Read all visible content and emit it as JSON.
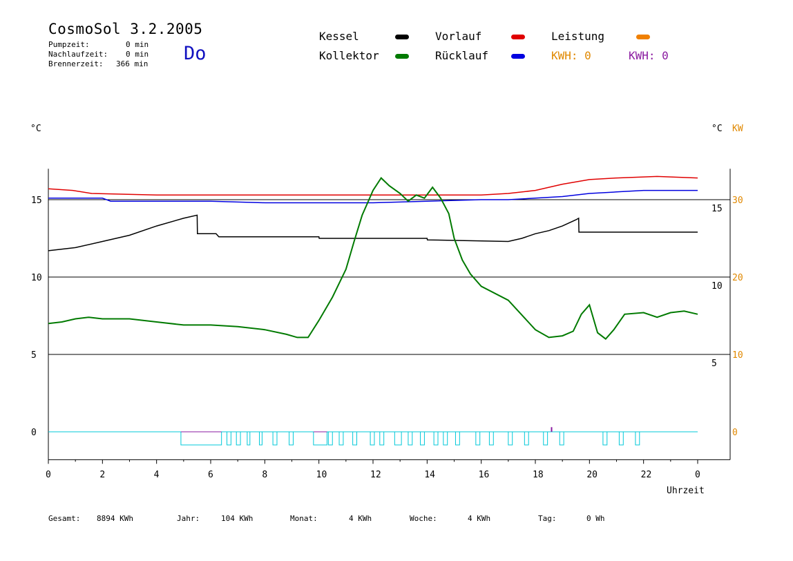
{
  "header": {
    "title": "CosmoSol 3.2.2005",
    "day": "Do",
    "pumpzeit_label": "Pumpzeit:",
    "pumpzeit_value": "0 min",
    "nachlaufzeit_label": "Nachlaufzeit:",
    "nachlaufzeit_value": "0 min",
    "brennerzeit_label": "Brennerzeit:",
    "brennerzeit_value": "366 min"
  },
  "legend": {
    "kessel": "Kessel",
    "kollektor": "Kollektor",
    "vorlauf": "Vorlauf",
    "ruecklauf": "Rücklauf",
    "leistung": "Leistung",
    "kwh1": "KWH: 0",
    "kwh2": "KWH: 0"
  },
  "colors": {
    "kessel": "#000000",
    "kollektor": "#007a00",
    "vorlauf": "#e00000",
    "ruecklauf": "#0000e0",
    "leistung": "#f08000",
    "kwh2": "#8a1aa0",
    "pump": "#00c8d8",
    "axis_right2": "#e08800"
  },
  "footer": {
    "gesamt_label": "Gesamt:",
    "gesamt_value": "8894 KWh",
    "jahr_label": "Jahr:",
    "jahr_value": "104 KWh",
    "monat_label": "Monat:",
    "monat_value": "4 KWh",
    "woche_label": "Woche:",
    "woche_value": "4 KWh",
    "tag_label": "Tag:",
    "tag_value": "0 Wh"
  },
  "chart_data": {
    "type": "line",
    "xlabel": "Uhrzeit",
    "x_ticks": [
      "0",
      "2",
      "4",
      "6",
      "8",
      "10",
      "12",
      "14",
      "16",
      "18",
      "20",
      "22",
      "0"
    ],
    "xlim": [
      0,
      24
    ],
    "y_left_unit": "°C",
    "y_left_ticks": [
      "0",
      "5",
      "10",
      "15"
    ],
    "y_right1_unit": "°C",
    "y_right1_ticks": [
      "5",
      "10",
      "15"
    ],
    "y_right2_unit": "KW",
    "y_right2_ticks": [
      "0",
      "10",
      "20",
      "30"
    ],
    "ylim": [
      -1.8,
      17
    ],
    "grid_y": [
      5,
      10,
      15
    ],
    "series": [
      {
        "name": "Vorlauf",
        "color": "#e00000",
        "x": [
          0,
          0.9,
          1.6,
          4,
          6,
          10,
          12,
          13.4,
          14.6,
          16,
          17,
          18,
          19,
          20,
          21,
          22.5,
          24
        ],
        "y": [
          15.7,
          15.6,
          15.4,
          15.3,
          15.3,
          15.3,
          15.3,
          15.3,
          15.3,
          15.3,
          15.4,
          15.6,
          16.0,
          16.3,
          16.4,
          16.5,
          16.4
        ]
      },
      {
        "name": "Rücklauf",
        "color": "#0000e0",
        "x": [
          0,
          2,
          2.3,
          4,
          6,
          8,
          10,
          12,
          14,
          16,
          17,
          18,
          19,
          20,
          21,
          22,
          24
        ],
        "y": [
          15.1,
          15.1,
          14.9,
          14.9,
          14.9,
          14.8,
          14.8,
          14.8,
          14.9,
          15.0,
          15.0,
          15.1,
          15.2,
          15.4,
          15.5,
          15.6,
          15.6
        ]
      },
      {
        "name": "Kessel",
        "color": "#000000",
        "x": [
          0,
          1,
          2,
          3,
          4,
          5,
          5.5,
          5.51,
          6.2,
          6.3,
          10,
          10.01,
          14,
          14.01,
          17,
          17.5,
          18,
          18.5,
          19,
          19.5,
          19.6,
          19.61,
          24
        ],
        "y": [
          11.7,
          11.9,
          12.3,
          12.7,
          13.3,
          13.8,
          14.0,
          12.8,
          12.8,
          12.6,
          12.6,
          12.5,
          12.5,
          12.4,
          12.3,
          12.5,
          12.8,
          13.0,
          13.3,
          13.7,
          13.8,
          12.9,
          12.9
        ]
      },
      {
        "name": "Kollektor",
        "color": "#007a00",
        "x": [
          0,
          0.5,
          1,
          1.5,
          2,
          3,
          4,
          5,
          6,
          7,
          8,
          8.8,
          9.2,
          9.6,
          10,
          10.5,
          11,
          11.3,
          11.6,
          11.8,
          12,
          12.3,
          12.6,
          13,
          13.3,
          13.6,
          13.9,
          14.2,
          14.5,
          14.8,
          15,
          15.3,
          15.6,
          16,
          17,
          18,
          18.5,
          19,
          19.4,
          19.7,
          20,
          20.3,
          20.6,
          20.9,
          21.3,
          22,
          22.5,
          23,
          23.5,
          24
        ],
        "y": [
          7.0,
          7.1,
          7.3,
          7.4,
          7.3,
          7.3,
          7.1,
          6.9,
          6.9,
          6.8,
          6.6,
          6.3,
          6.1,
          6.1,
          7.2,
          8.7,
          10.5,
          12.3,
          14.0,
          14.8,
          15.6,
          16.4,
          15.9,
          15.4,
          14.9,
          15.3,
          15.1,
          15.8,
          15.1,
          14.1,
          12.5,
          11.1,
          10.2,
          9.4,
          8.5,
          6.6,
          6.1,
          6.2,
          6.5,
          7.6,
          8.2,
          6.4,
          6.0,
          6.6,
          7.6,
          7.7,
          7.4,
          7.7,
          7.8,
          7.6
        ]
      }
    ],
    "pump_on_intervals": [
      [
        4.9,
        6.4
      ],
      [
        6.6,
        6.75
      ],
      [
        6.95,
        7.1
      ],
      [
        7.35,
        7.45
      ],
      [
        7.8,
        7.9
      ],
      [
        8.3,
        8.45
      ],
      [
        8.9,
        9.05
      ],
      [
        9.8,
        10.3
      ],
      [
        10.35,
        10.5
      ],
      [
        10.75,
        10.9
      ],
      [
        11.25,
        11.4
      ],
      [
        11.9,
        12.05
      ],
      [
        12.25,
        12.4
      ],
      [
        12.8,
        13.05
      ],
      [
        13.3,
        13.45
      ],
      [
        13.75,
        13.9
      ],
      [
        14.25,
        14.4
      ],
      [
        14.6,
        14.75
      ],
      [
        15.05,
        15.2
      ],
      [
        15.8,
        15.95
      ],
      [
        16.3,
        16.45
      ],
      [
        17.0,
        17.15
      ],
      [
        17.6,
        17.75
      ],
      [
        18.3,
        18.45
      ],
      [
        18.9,
        19.05
      ],
      [
        20.5,
        20.65
      ],
      [
        21.1,
        21.25
      ],
      [
        21.7,
        21.85
      ]
    ],
    "leistung_spike": {
      "x": 18.6,
      "y_kw": 0.6
    },
    "legend_placement": "top"
  }
}
